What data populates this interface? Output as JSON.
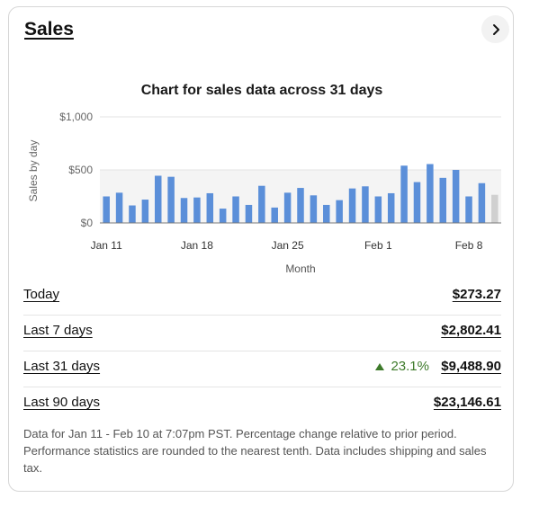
{
  "card": {
    "title": "Sales",
    "nav_icon": "chevron-right-icon"
  },
  "chart_data": {
    "type": "bar",
    "title": "Chart for sales data across 31 days",
    "ylabel": "Sales by day",
    "xlabel": "Month",
    "ylim": [
      0,
      1000
    ],
    "y_ticks": [
      "$0",
      "$500",
      "$1,000"
    ],
    "y_tick_values": [
      0,
      500,
      1000
    ],
    "x_ticks": [
      "Jan 11",
      "Jan 18",
      "Jan 25",
      "Feb 1",
      "Feb 8"
    ],
    "x_tick_index": [
      0,
      7,
      14,
      21,
      28
    ],
    "categories": [
      "Jan 11",
      "Jan 12",
      "Jan 13",
      "Jan 14",
      "Jan 15",
      "Jan 16",
      "Jan 17",
      "Jan 18",
      "Jan 19",
      "Jan 20",
      "Jan 21",
      "Jan 22",
      "Jan 23",
      "Jan 24",
      "Jan 25",
      "Jan 26",
      "Jan 27",
      "Jan 28",
      "Jan 29",
      "Jan 30",
      "Jan 31",
      "Feb 1",
      "Feb 2",
      "Feb 3",
      "Feb 4",
      "Feb 5",
      "Feb 6",
      "Feb 7",
      "Feb 8",
      "Feb 9",
      "Feb 10"
    ],
    "values": [
      250,
      285,
      165,
      220,
      445,
      435,
      235,
      240,
      280,
      135,
      250,
      170,
      350,
      145,
      285,
      330,
      260,
      170,
      215,
      325,
      345,
      250,
      280,
      540,
      385,
      555,
      425,
      500,
      250,
      375,
      265
    ],
    "bar_color": "#5b8fd9",
    "partial_bar_color": "#d0d0d0",
    "partial_index": 30,
    "grid": true
  },
  "rows": [
    {
      "label": "Today",
      "value": "$273.27",
      "change": ""
    },
    {
      "label": "Last 7 days",
      "value": "$2,802.41",
      "change": ""
    },
    {
      "label": "Last 31 days",
      "value": "$9,488.90",
      "change": "23.1%"
    },
    {
      "label": "Last 90 days",
      "value": "$23,146.61",
      "change": ""
    }
  ],
  "colors": {
    "positive": "#3d7a2a"
  },
  "footnote": "Data for Jan 11 - Feb 10 at 7:07pm PST. Percentage change relative to prior period. Performance statistics are rounded to the nearest tenth. Data includes shipping and sales tax."
}
